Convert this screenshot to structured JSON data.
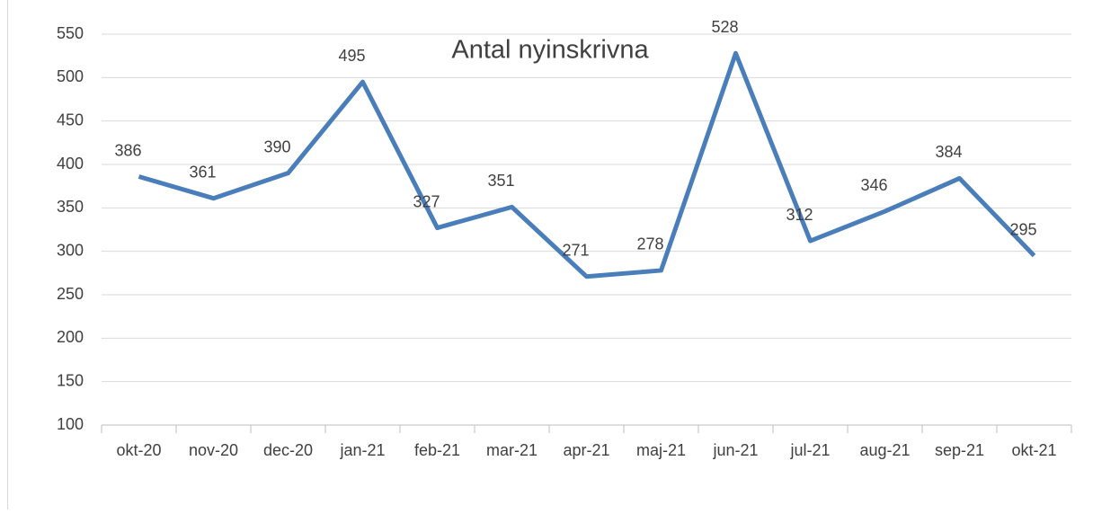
{
  "chart_data": {
    "type": "line",
    "title": "Antal nyinskrivna",
    "categories": [
      "okt-20",
      "nov-20",
      "dec-20",
      "jan-21",
      "feb-21",
      "mar-21",
      "apr-21",
      "maj-21",
      "jun-21",
      "jul-21",
      "aug-21",
      "sep-21",
      "okt-21"
    ],
    "series": [
      {
        "color": "#4a7ebb",
        "values": [
          386,
          361,
          390,
          495,
          327,
          351,
          271,
          278,
          528,
          312,
          346,
          384,
          295
        ]
      }
    ],
    "ylim": [
      100,
      550
    ],
    "yticks": [
      100,
      150,
      200,
      250,
      300,
      350,
      400,
      450,
      500,
      550
    ],
    "grid": true
  }
}
